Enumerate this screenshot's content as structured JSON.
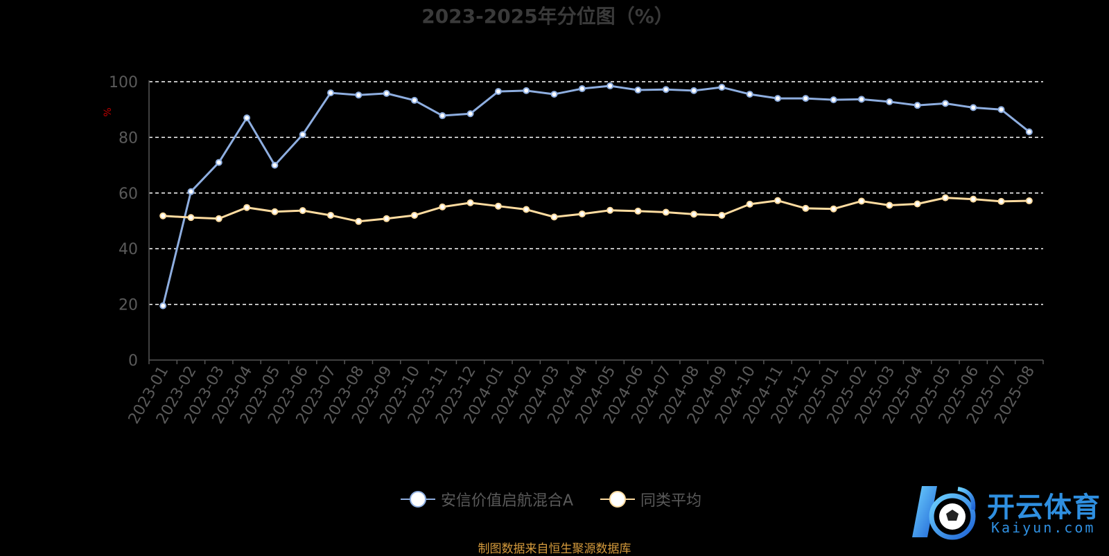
{
  "chart_data": {
    "type": "line",
    "title": "2023-2025年分位图（%）",
    "ylabel": "%",
    "xlabel": "",
    "ylim": [
      0,
      100
    ],
    "yticks": [
      0,
      20,
      40,
      60,
      80,
      100
    ],
    "grid": "horizontal-dashed",
    "legend_position": "bottom-center",
    "categories": [
      "2023-01",
      "2023-02",
      "2023-03",
      "2023-04",
      "2023-05",
      "2023-06",
      "2023-07",
      "2023-08",
      "2023-09",
      "2023-10",
      "2023-11",
      "2023-12",
      "2024-01",
      "2024-02",
      "2024-03",
      "2024-04",
      "2024-05",
      "2024-06",
      "2024-07",
      "2024-08",
      "2024-09",
      "2024-10",
      "2024-11",
      "2024-12",
      "2025-01",
      "2025-02",
      "2025-03",
      "2025-04",
      "2025-05",
      "2025-06",
      "2025-07",
      "2025-08"
    ],
    "series": [
      {
        "name": "安信价值启航混合A",
        "color": "#8eaee0",
        "values": [
          19.5,
          60.5,
          71,
          87,
          70,
          81,
          96,
          95.2,
          95.8,
          93.3,
          87.8,
          88.5,
          96.5,
          96.8,
          95.5,
          97.5,
          98.5,
          97,
          97.2,
          96.8,
          98,
          95.5,
          94,
          94,
          93.5,
          93.7,
          92.8,
          91.5,
          92.2,
          90.7,
          90,
          82
        ]
      },
      {
        "name": "同类平均",
        "color": "#ffdca0",
        "values": [
          51.8,
          51.2,
          50.8,
          54.8,
          53.3,
          53.7,
          52,
          49.8,
          50.8,
          52,
          55,
          56.5,
          55.3,
          54.1,
          51.4,
          52.5,
          53.8,
          53.5,
          53.1,
          52.4,
          52,
          56,
          57.3,
          54.5,
          54.3,
          57.1,
          55.6,
          56.1,
          58.3,
          57.8,
          57,
          57.2
        ]
      }
    ]
  },
  "footer": {
    "source": "制图数据来自恒生聚源数据库"
  },
  "watermark": {
    "brand": "开云体育",
    "domain": "Kaiyun.com"
  }
}
